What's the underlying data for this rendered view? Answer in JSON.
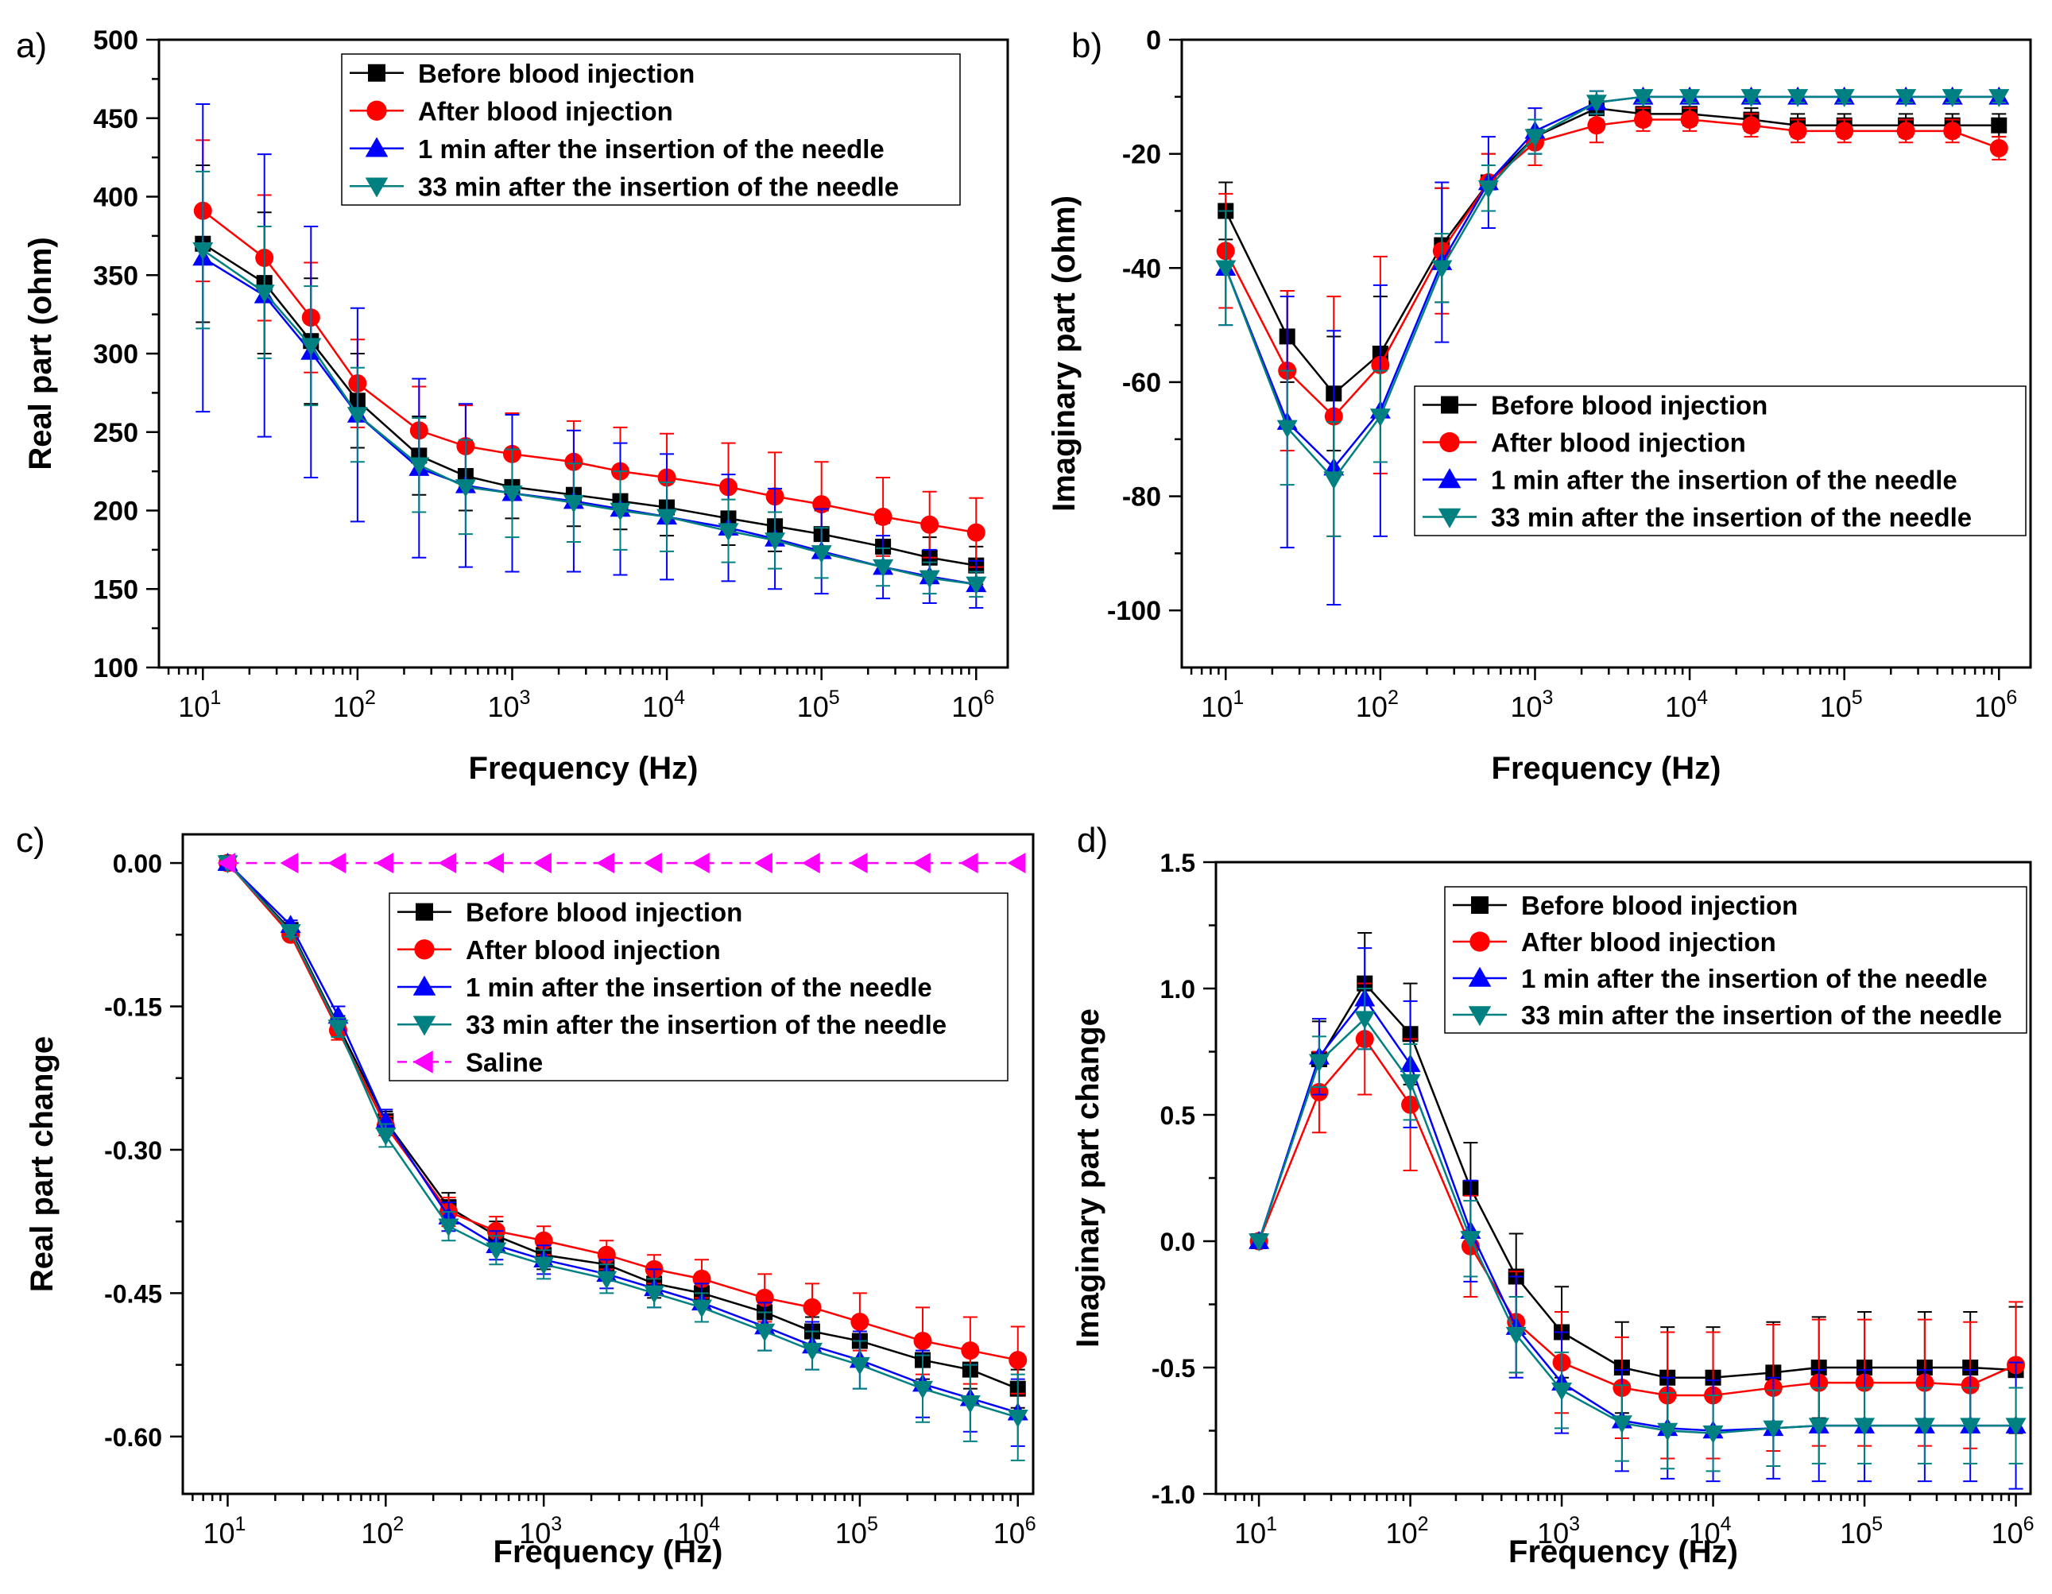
{
  "series_colors": [
    "#000000",
    "#ff0000",
    "#0000ff",
    "#008080",
    "#ff00ff"
  ],
  "chart_data": [
    {
      "panel_label": "a)",
      "type": "line",
      "xscale": "log",
      "x": [
        10,
        25,
        50,
        100,
        250,
        500,
        1000,
        2500,
        5000,
        10000,
        25000,
        50000,
        100000,
        250000,
        500000,
        1000000
      ],
      "xlim": [
        5.2,
        1600000
      ],
      "xticks": [
        {
          "base": "10",
          "exp": "1",
          "value": 10
        },
        {
          "base": "10",
          "exp": "2",
          "value": 100
        },
        {
          "base": "10",
          "exp": "3",
          "value": 1000
        },
        {
          "base": "10",
          "exp": "4",
          "value": 10000
        },
        {
          "base": "10",
          "exp": "5",
          "value": 100000
        },
        {
          "base": "10",
          "exp": "6",
          "value": 1000000
        }
      ],
      "ylim": [
        100,
        500
      ],
      "yticks": [
        {
          "label": "100",
          "value": 100
        },
        {
          "label": "150",
          "value": 150
        },
        {
          "label": "200",
          "value": 200
        },
        {
          "label": "250",
          "value": 250
        },
        {
          "label": "300",
          "value": 300
        },
        {
          "label": "350",
          "value": 350
        },
        {
          "label": "400",
          "value": 400
        },
        {
          "label": "450",
          "value": 450
        },
        {
          "label": "500",
          "value": 500
        }
      ],
      "xlabel": "Frequency (Hz)",
      "ylabel": "Real part (ohm)",
      "legend": "top-right",
      "series": [
        {
          "name": "Before blood injection",
          "marker": "square",
          "values": [
            370,
            345,
            308,
            270,
            235,
            222,
            215,
            210,
            206,
            202,
            195,
            190,
            185,
            177,
            170,
            165
          ],
          "errors": [
            50,
            45,
            40,
            30,
            25,
            22,
            20,
            20,
            18,
            18,
            17,
            16,
            15,
            15,
            13,
            12
          ]
        },
        {
          "name": "After blood injection",
          "marker": "circle",
          "values": [
            391,
            361,
            323,
            281,
            251,
            241,
            236,
            231,
            225,
            221,
            215,
            209,
            204,
            196,
            191,
            186
          ],
          "errors": [
            45,
            40,
            35,
            28,
            28,
            26,
            26,
            26,
            28,
            28,
            28,
            28,
            27,
            25,
            21,
            22
          ]
        },
        {
          "name": "1 min after the insertion of the needle",
          "marker": "triangle-up",
          "values": [
            361,
            337,
            301,
            261,
            227,
            216,
            211,
            206,
            201,
            196,
            189,
            182,
            174,
            164,
            158,
            153
          ],
          "errors": [
            98,
            90,
            80,
            68,
            57,
            52,
            50,
            45,
            42,
            40,
            34,
            32,
            27,
            20,
            17,
            15
          ]
        },
        {
          "name": "33 min after the insertion of the needle",
          "marker": "triangle-down",
          "values": [
            366,
            339,
            305,
            261,
            229,
            215,
            211,
            205,
            200,
            196,
            187,
            181,
            173,
            164,
            157,
            153
          ],
          "errors": [
            50,
            42,
            38,
            30,
            30,
            30,
            28,
            25,
            25,
            22,
            20,
            18,
            16,
            12,
            10,
            8
          ]
        }
      ]
    },
    {
      "panel_label": "b)",
      "type": "line",
      "xscale": "log",
      "x": [
        10,
        25,
        50,
        100,
        250,
        500,
        1000,
        2500,
        5000,
        10000,
        25000,
        50000,
        100000,
        250000,
        500000,
        1000000
      ],
      "xlim": [
        5.2,
        1600000
      ],
      "xticks": [
        {
          "base": "10",
          "exp": "1",
          "value": 10
        },
        {
          "base": "10",
          "exp": "2",
          "value": 100
        },
        {
          "base": "10",
          "exp": "3",
          "value": 1000
        },
        {
          "base": "10",
          "exp": "4",
          "value": 10000
        },
        {
          "base": "10",
          "exp": "5",
          "value": 100000
        },
        {
          "base": "10",
          "exp": "6",
          "value": 1000000
        }
      ],
      "ylim": [
        -110,
        0
      ],
      "yticks": [
        {
          "label": "0",
          "value": 0
        },
        {
          "label": "-20",
          "value": -20
        },
        {
          "label": "-40",
          "value": -40
        },
        {
          "label": "-60",
          "value": -60
        },
        {
          "label": "-80",
          "value": -80
        },
        {
          "label": "-100",
          "value": -100
        }
      ],
      "xlabel": "Frequency (Hz)",
      "ylabel": "Imaginary part (ohm)",
      "legend": "center-right",
      "series": [
        {
          "name": "Before blood injection",
          "marker": "square",
          "values": [
            -30,
            -52,
            -62,
            -55,
            -36,
            -25,
            -17,
            -12,
            -13,
            -13,
            -14,
            -15,
            -15,
            -15,
            -15,
            -15
          ],
          "errors": [
            5,
            8,
            10,
            10,
            10,
            5,
            3,
            2,
            2,
            2,
            2,
            2,
            2,
            2,
            2,
            2
          ]
        },
        {
          "name": "After blood injection",
          "marker": "circle",
          "values": [
            -37,
            -58,
            -66,
            -57,
            -37,
            -25,
            -18,
            -15,
            -14,
            -14,
            -15,
            -16,
            -16,
            -16,
            -16,
            -19
          ],
          "errors": [
            10,
            14,
            21,
            19,
            11,
            5,
            4,
            3,
            2,
            2,
            2,
            2,
            2,
            2,
            2,
            2
          ]
        },
        {
          "name": "1 min after the insertion of the needle",
          "marker": "triangle-up",
          "values": [
            -40,
            -67,
            -75,
            -65,
            -39,
            -25,
            -16,
            -11,
            -10,
            -10,
            -10,
            -10,
            -10,
            -10,
            -10,
            -10
          ],
          "errors": [
            10,
            22,
            24,
            22,
            14,
            8,
            4,
            2,
            1,
            1,
            1,
            1,
            1,
            1,
            1,
            1
          ]
        },
        {
          "name": "33 min after the insertion of the needle",
          "marker": "triangle-down",
          "values": [
            -40,
            -68,
            -77,
            -66,
            -40,
            -26,
            -17,
            -11,
            -10,
            -10,
            -10,
            -10,
            -10,
            -10,
            -10,
            -10
          ],
          "errors": [
            10,
            10,
            10,
            8,
            6,
            4,
            3,
            2,
            1,
            1,
            1,
            1,
            1,
            1,
            1,
            1
          ]
        }
      ]
    },
    {
      "panel_label": "c)",
      "type": "line",
      "xscale": "log",
      "x": [
        10,
        25,
        50,
        100,
        250,
        500,
        1000,
        2500,
        5000,
        10000,
        25000,
        50000,
        100000,
        250000,
        500000,
        1000000
      ],
      "xlim": [
        5.2,
        1250000
      ],
      "xticks": [
        {
          "base": "10",
          "exp": "1",
          "value": 10
        },
        {
          "base": "10",
          "exp": "2",
          "value": 100
        },
        {
          "base": "10",
          "exp": "3",
          "value": 1000
        },
        {
          "base": "10",
          "exp": "4",
          "value": 10000
        },
        {
          "base": "10",
          "exp": "5",
          "value": 100000
        },
        {
          "base": "10",
          "exp": "6",
          "value": 1000000
        }
      ],
      "ylim": [
        -0.66,
        0.03
      ],
      "yticks": [
        {
          "label": "0.00",
          "value": 0
        },
        {
          "label": "-0.15",
          "value": -0.15
        },
        {
          "label": "-0.30",
          "value": -0.3
        },
        {
          "label": "-0.45",
          "value": -0.45
        },
        {
          "label": "-0.60",
          "value": -0.6
        }
      ],
      "xlabel": "Frequency (Hz)",
      "ylabel": "Real part change",
      "legend": "top-center",
      "series": [
        {
          "name": "Before blood injection",
          "marker": "square",
          "values": [
            0,
            -0.07,
            -0.17,
            -0.27,
            -0.36,
            -0.39,
            -0.41,
            -0.42,
            -0.44,
            -0.45,
            -0.47,
            -0.49,
            -0.5,
            -0.52,
            -0.53,
            -0.55
          ],
          "errors": [
            0,
            0.005,
            0.01,
            0.01,
            0.015,
            0.015,
            0.015,
            0.015,
            0.015,
            0.015,
            0.015,
            0.015,
            0.02,
            0.02,
            0.02,
            0.02
          ]
        },
        {
          "name": "After blood injection",
          "marker": "circle",
          "values": [
            0,
            -0.075,
            -0.175,
            -0.275,
            -0.365,
            -0.385,
            -0.395,
            -0.41,
            -0.425,
            -0.435,
            -0.455,
            -0.465,
            -0.48,
            -0.5,
            -0.51,
            -0.52
          ],
          "errors": [
            0,
            0.005,
            0.01,
            0.01,
            0.015,
            0.015,
            0.015,
            0.015,
            0.015,
            0.02,
            0.025,
            0.025,
            0.03,
            0.035,
            0.035,
            0.035
          ]
        },
        {
          "name": "1 min after the insertion of the needle",
          "marker": "triangle-up",
          "values": [
            0,
            -0.065,
            -0.16,
            -0.27,
            -0.37,
            -0.4,
            -0.415,
            -0.43,
            -0.445,
            -0.46,
            -0.485,
            -0.505,
            -0.52,
            -0.545,
            -0.56,
            -0.575
          ],
          "errors": [
            0,
            0.005,
            0.01,
            0.012,
            0.015,
            0.015,
            0.015,
            0.015,
            0.02,
            0.02,
            0.025,
            0.025,
            0.03,
            0.035,
            0.035,
            0.035
          ]
        },
        {
          "name": "33 min after the insertion of the needle",
          "marker": "triangle-down",
          "values": [
            0,
            -0.072,
            -0.172,
            -0.285,
            -0.38,
            -0.405,
            -0.42,
            -0.435,
            -0.45,
            -0.465,
            -0.49,
            -0.51,
            -0.525,
            -0.55,
            -0.565,
            -0.58
          ],
          "errors": [
            0,
            0.005,
            0.01,
            0.012,
            0.015,
            0.015,
            0.015,
            0.015,
            0.015,
            0.015,
            0.02,
            0.02,
            0.025,
            0.035,
            0.04,
            0.045
          ]
        },
        {
          "name": "Saline",
          "marker": "triangle-left",
          "values": [
            0,
            0,
            0,
            0,
            0,
            0,
            0,
            0,
            0,
            0,
            0,
            0,
            0,
            0,
            0,
            0
          ],
          "errors": [
            0,
            0,
            0,
            0,
            0,
            0,
            0,
            0,
            0,
            0,
            0,
            0,
            0,
            0,
            0,
            0
          ]
        }
      ]
    },
    {
      "panel_label": "d)",
      "type": "line",
      "xscale": "log",
      "x": [
        10,
        25,
        50,
        100,
        250,
        500,
        1000,
        2500,
        5000,
        10000,
        25000,
        50000,
        100000,
        250000,
        500000,
        1000000
      ],
      "xlim": [
        5.2,
        1250000
      ],
      "xticks": [
        {
          "base": "10",
          "exp": "1",
          "value": 10
        },
        {
          "base": "10",
          "exp": "2",
          "value": 100
        },
        {
          "base": "10",
          "exp": "3",
          "value": 1000
        },
        {
          "base": "10",
          "exp": "4",
          "value": 10000
        },
        {
          "base": "10",
          "exp": "5",
          "value": 100000
        },
        {
          "base": "10",
          "exp": "6",
          "value": 1000000
        }
      ],
      "ylim": [
        -1.0,
        1.5
      ],
      "yticks": [
        {
          "label": "1.5",
          "value": 1.5
        },
        {
          "label": "1.0",
          "value": 1.0
        },
        {
          "label": "0.5",
          "value": 0.5
        },
        {
          "label": "0.0",
          "value": 0
        },
        {
          "label": "-0.5",
          "value": -0.5
        },
        {
          "label": "-1.0",
          "value": -1.0
        }
      ],
      "xlabel": "Frequency (Hz)",
      "ylabel": "Imaginary part change",
      "legend": "top-right",
      "series": [
        {
          "name": "Before blood injection",
          "marker": "square",
          "values": [
            0,
            0.72,
            1.02,
            0.82,
            0.21,
            -0.14,
            -0.36,
            -0.5,
            -0.54,
            -0.54,
            -0.52,
            -0.5,
            -0.5,
            -0.5,
            -0.5,
            -0.51
          ],
          "errors": [
            0,
            0.15,
            0.2,
            0.2,
            0.18,
            0.17,
            0.18,
            0.18,
            0.2,
            0.2,
            0.2,
            0.2,
            0.22,
            0.22,
            0.22,
            0.25
          ]
        },
        {
          "name": "After blood injection",
          "marker": "circle",
          "values": [
            0,
            0.59,
            0.8,
            0.54,
            -0.02,
            -0.32,
            -0.48,
            -0.58,
            -0.61,
            -0.61,
            -0.58,
            -0.56,
            -0.56,
            -0.56,
            -0.57,
            -0.49
          ],
          "errors": [
            0,
            0.16,
            0.22,
            0.26,
            0.2,
            0.2,
            0.2,
            0.2,
            0.25,
            0.25,
            0.25,
            0.25,
            0.25,
            0.25,
            0.25,
            0.25
          ]
        },
        {
          "name": "1 min after the insertion of the needle",
          "marker": "triangle-up",
          "values": [
            0,
            0.73,
            0.96,
            0.7,
            0.04,
            -0.34,
            -0.56,
            -0.71,
            -0.74,
            -0.75,
            -0.74,
            -0.73,
            -0.73,
            -0.73,
            -0.73,
            -0.73
          ],
          "errors": [
            0,
            0.15,
            0.2,
            0.25,
            0.2,
            0.2,
            0.2,
            0.2,
            0.2,
            0.2,
            0.2,
            0.22,
            0.22,
            0.22,
            0.22,
            0.25
          ]
        },
        {
          "name": "33 min after the insertion of the needle",
          "marker": "triangle-down",
          "values": [
            0,
            0.71,
            0.88,
            0.63,
            0.01,
            -0.37,
            -0.59,
            -0.72,
            -0.75,
            -0.76,
            -0.74,
            -0.73,
            -0.73,
            -0.73,
            -0.73,
            -0.73
          ],
          "errors": [
            0,
            0.1,
            0.12,
            0.15,
            0.15,
            0.15,
            0.15,
            0.15,
            0.15,
            0.15,
            0.15,
            0.15,
            0.15,
            0.15,
            0.15,
            0.15
          ]
        }
      ]
    }
  ]
}
